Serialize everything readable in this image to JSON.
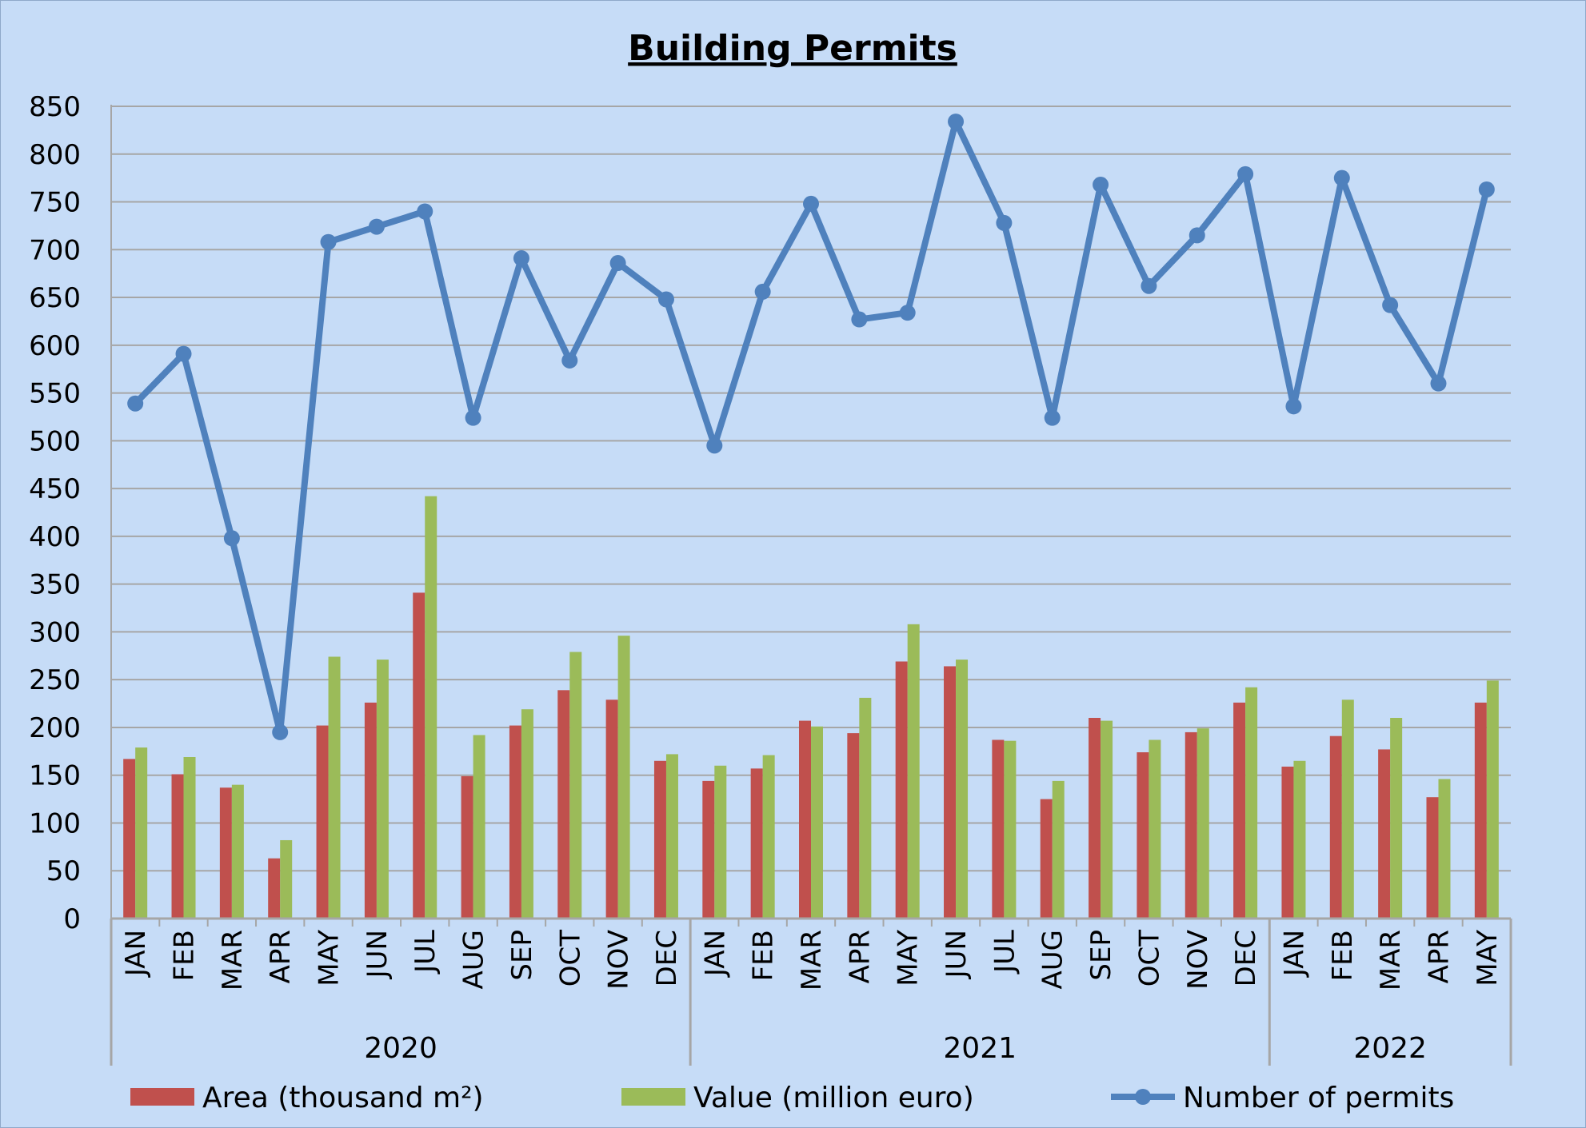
{
  "chart_data": {
    "type": "bar",
    "title": "Building Permits",
    "xlabel": "",
    "ylabel": "",
    "ylim": [
      0,
      850
    ],
    "yticks": [
      0,
      50,
      100,
      150,
      200,
      250,
      300,
      350,
      400,
      450,
      500,
      550,
      600,
      650,
      700,
      750,
      800,
      850
    ],
    "grid": true,
    "legend_position": "bottom",
    "categories": [
      "JAN",
      "FEB",
      "MAR",
      "APR",
      "MAY",
      "JUN",
      "JUL",
      "AUG",
      "SEP",
      "OCT",
      "NOV",
      "DEC",
      "JAN",
      "FEB",
      "MAR",
      "APR",
      "MAY",
      "JUN",
      "JUL",
      "AUG",
      "SEP",
      "OCT",
      "NOV",
      "DEC",
      "JAN",
      "FEB",
      "MAR",
      "APR",
      "MAY"
    ],
    "years": [
      {
        "label": "2020",
        "months": 12
      },
      {
        "label": "2021",
        "months": 12
      },
      {
        "label": "2022",
        "months": 5
      }
    ],
    "series": [
      {
        "name": "Area (thousand m²)",
        "type": "bar",
        "color": "#c0504d",
        "values": [
          167,
          151,
          137,
          63,
          202,
          226,
          341,
          149,
          202,
          239,
          229,
          165,
          144,
          157,
          207,
          194,
          269,
          264,
          187,
          125,
          210,
          174,
          195,
          226,
          159,
          191,
          177,
          127,
          226
        ]
      },
      {
        "name": "Value (million euro)",
        "type": "bar",
        "color": "#9bbb59",
        "values": [
          179,
          169,
          140,
          82,
          274,
          271,
          442,
          192,
          219,
          279,
          296,
          172,
          160,
          171,
          201,
          231,
          308,
          271,
          186,
          144,
          207,
          187,
          199,
          242,
          165,
          229,
          210,
          146,
          249
        ]
      },
      {
        "name": "Number of permits",
        "type": "line",
        "color": "#4f81bd",
        "values": [
          539,
          591,
          398,
          195,
          708,
          724,
          740,
          524,
          691,
          584,
          686,
          648,
          495,
          656,
          748,
          627,
          634,
          834,
          728,
          524,
          768,
          662,
          715,
          779,
          536,
          775,
          642,
          560,
          763
        ]
      }
    ]
  }
}
